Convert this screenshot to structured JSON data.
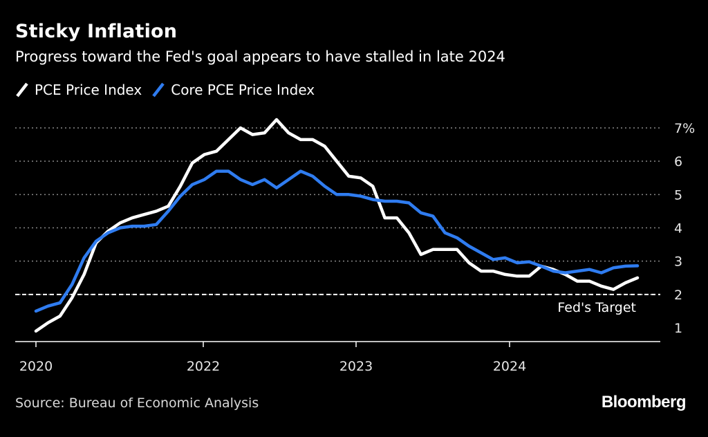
{
  "header": {
    "title": "Sticky Inflation",
    "subtitle": "Progress toward the Fed's goal appears to have stalled in late 2024"
  },
  "footer": {
    "source": "Source: Bureau of Economic Analysis",
    "brand": "Bloomberg"
  },
  "colors": {
    "background": "#000000",
    "pce": "#ffffff",
    "core_pce": "#2f7cf0",
    "grid": "#8a8a8a"
  },
  "chart_data": {
    "type": "line",
    "title": "Sticky Inflation",
    "subtitle": "Progress toward the Fed's goal appears to have stalled in late 2024",
    "x_type": "date",
    "x_ticks": [
      {
        "date": "2020-01",
        "label": "2020"
      },
      {
        "date": "2022-01",
        "label": "2022"
      },
      {
        "date": "2023-01",
        "label": "2023"
      },
      {
        "date": "2024-01",
        "label": "2024"
      }
    ],
    "xlim": [
      "2020-01",
      "2024-11"
    ],
    "ylim": [
      1,
      7
    ],
    "y_ticks": [
      {
        "value": 1,
        "label": "1"
      },
      {
        "value": 2,
        "label": "2"
      },
      {
        "value": 3,
        "label": "3"
      },
      {
        "value": 4,
        "label": "4"
      },
      {
        "value": 5,
        "label": "5"
      },
      {
        "value": 6,
        "label": "6"
      },
      {
        "value": 7,
        "label": "7%"
      }
    ],
    "grid": true,
    "grid_style": "dotted",
    "y_axis_position": "right",
    "legend_position": "top-left",
    "annotations": [
      {
        "type": "hline",
        "value": 2,
        "label": "Fed's Target",
        "style": "dashed"
      }
    ],
    "series": [
      {
        "name": "PCE Price Index",
        "color": "#ffffff",
        "points": [
          [
            "2020-01",
            0.9
          ],
          [
            "2020-02",
            1.15
          ],
          [
            "2020-03",
            1.35
          ],
          [
            "2020-04",
            1.9
          ],
          [
            "2020-05",
            2.6
          ],
          [
            "2020-06",
            3.55
          ],
          [
            "2020-07",
            3.9
          ],
          [
            "2020-08",
            4.15
          ],
          [
            "2020-09",
            4.3
          ],
          [
            "2020-10",
            4.4
          ],
          [
            "2020-11",
            4.5
          ],
          [
            "2020-12",
            4.65
          ],
          [
            "2021-01",
            5.25
          ],
          [
            "2021-02",
            5.95
          ],
          [
            "2021-03",
            6.2
          ],
          [
            "2021-04",
            6.3
          ],
          [
            "2021-05",
            6.65
          ],
          [
            "2021-06",
            7.0
          ],
          [
            "2021-07",
            6.8
          ],
          [
            "2021-08",
            6.85
          ],
          [
            "2021-09",
            7.25
          ],
          [
            "2021-10",
            6.85
          ],
          [
            "2021-11",
            6.65
          ],
          [
            "2021-12",
            6.65
          ],
          [
            "2022-01",
            6.45
          ],
          [
            "2022-02",
            6.0
          ],
          [
            "2022-03",
            5.55
          ],
          [
            "2022-04",
            5.5
          ],
          [
            "2022-05",
            5.25
          ],
          [
            "2022-06",
            4.3
          ],
          [
            "2022-07",
            4.3
          ],
          [
            "2022-08",
            3.85
          ],
          [
            "2022-09",
            3.2
          ],
          [
            "2022-10",
            3.35
          ],
          [
            "2022-11",
            3.35
          ],
          [
            "2022-12",
            3.35
          ],
          [
            "2023-01",
            2.95
          ],
          [
            "2023-02",
            2.7
          ],
          [
            "2023-03",
            2.7
          ],
          [
            "2023-04",
            2.6
          ],
          [
            "2023-05",
            2.55
          ],
          [
            "2023-06",
            2.55
          ],
          [
            "2023-07",
            2.85
          ],
          [
            "2023-08",
            2.75
          ],
          [
            "2023-09",
            2.6
          ],
          [
            "2023-10",
            2.4
          ],
          [
            "2023-11",
            2.4
          ],
          [
            "2023-12",
            2.25
          ],
          [
            "2024-01",
            2.15
          ],
          [
            "2024-02",
            2.35
          ],
          [
            "2024-03",
            2.5
          ]
        ]
      },
      {
        "name": "Core PCE Price Index",
        "color": "#2f7cf0",
        "points": [
          [
            "2020-01",
            1.5
          ],
          [
            "2020-02",
            1.65
          ],
          [
            "2020-03",
            1.75
          ],
          [
            "2020-04",
            2.3
          ],
          [
            "2020-05",
            3.1
          ],
          [
            "2020-06",
            3.6
          ],
          [
            "2020-07",
            3.85
          ],
          [
            "2020-08",
            4.0
          ],
          [
            "2020-09",
            4.05
          ],
          [
            "2020-10",
            4.05
          ],
          [
            "2020-11",
            4.1
          ],
          [
            "2020-12",
            4.5
          ],
          [
            "2021-01",
            4.95
          ],
          [
            "2021-02",
            5.3
          ],
          [
            "2021-03",
            5.45
          ],
          [
            "2021-04",
            5.7
          ],
          [
            "2021-05",
            5.7
          ],
          [
            "2021-06",
            5.45
          ],
          [
            "2021-07",
            5.3
          ],
          [
            "2021-08",
            5.45
          ],
          [
            "2021-09",
            5.2
          ],
          [
            "2021-10",
            5.45
          ],
          [
            "2021-11",
            5.7
          ],
          [
            "2021-12",
            5.55
          ],
          [
            "2022-01",
            5.25
          ],
          [
            "2022-02",
            5.0
          ],
          [
            "2022-03",
            5.0
          ],
          [
            "2022-04",
            4.95
          ],
          [
            "2022-05",
            4.85
          ],
          [
            "2022-06",
            4.8
          ],
          [
            "2022-07",
            4.8
          ],
          [
            "2022-08",
            4.75
          ],
          [
            "2022-09",
            4.45
          ],
          [
            "2022-10",
            4.35
          ],
          [
            "2022-11",
            3.85
          ],
          [
            "2022-12",
            3.7
          ],
          [
            "2023-01",
            3.45
          ],
          [
            "2023-02",
            3.25
          ],
          [
            "2023-03",
            3.05
          ],
          [
            "2023-04",
            3.1
          ],
          [
            "2023-05",
            2.95
          ],
          [
            "2023-06",
            2.98
          ],
          [
            "2023-07",
            2.85
          ],
          [
            "2023-08",
            2.7
          ],
          [
            "2023-09",
            2.65
          ],
          [
            "2023-10",
            2.7
          ],
          [
            "2023-11",
            2.75
          ],
          [
            "2023-12",
            2.65
          ],
          [
            "2024-01",
            2.8
          ],
          [
            "2024-02",
            2.85
          ],
          [
            "2024-03",
            2.86
          ]
        ]
      }
    ]
  }
}
